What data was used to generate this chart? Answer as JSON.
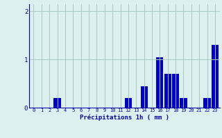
{
  "hours": [
    0,
    1,
    2,
    3,
    4,
    5,
    6,
    7,
    8,
    9,
    10,
    11,
    12,
    13,
    14,
    15,
    16,
    17,
    18,
    19,
    20,
    21,
    22,
    23
  ],
  "values": [
    0,
    0,
    0,
    0.2,
    0,
    0,
    0,
    0,
    0,
    0,
    0,
    0,
    0.2,
    0,
    0.45,
    0,
    1.05,
    0.7,
    0.7,
    0.2,
    0,
    0,
    0.2,
    1.3
  ],
  "bar_color": "#0000cc",
  "background_color": "#ddf0f0",
  "grid_color": "#aac8c8",
  "tick_color": "#0000aa",
  "xlabel": "Précipitations 1h ( mm )",
  "xlabel_color": "#0000aa",
  "ylim": [
    0,
    2.15
  ],
  "yticks": [
    0,
    1,
    2
  ],
  "xlim": [
    -0.6,
    23.6
  ],
  "title": ""
}
